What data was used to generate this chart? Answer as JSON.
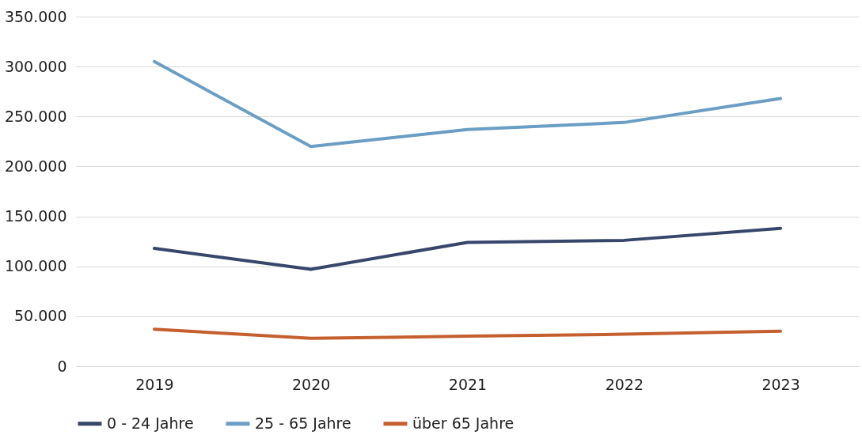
{
  "chart_data": {
    "type": "line",
    "categories": [
      "2019",
      "2020",
      "2021",
      "2022",
      "2023"
    ],
    "series": [
      {
        "name": "0 - 24 Jahre",
        "color": "#36476b",
        "values": [
          118000,
          97000,
          124000,
          126000,
          138000
        ]
      },
      {
        "name": "25 - 65 Jahre",
        "color": "#6a9ec4",
        "values": [
          305000,
          220000,
          237000,
          244000,
          268000
        ]
      },
      {
        "name": "über 65 Jahre",
        "color": "#c55f2e",
        "values": [
          37000,
          28000,
          30000,
          32000,
          35000
        ]
      }
    ],
    "ylim": [
      0,
      350000
    ],
    "yticks": [
      0,
      {
        "value": 50000,
        "label": "50.000"
      },
      {
        "value": 100000,
        "label": "100.000"
      },
      {
        "value": 150000,
        "label": "150.000"
      },
      {
        "value": 200000,
        "label": "200.000"
      },
      {
        "value": 250000,
        "label": "250.000"
      },
      {
        "value": 300000,
        "label": "300.000"
      },
      {
        "value": 350000,
        "label": "350.000"
      }
    ],
    "grid": "y",
    "legend": "bottom",
    "marker": "none",
    "line_style": "solid"
  }
}
